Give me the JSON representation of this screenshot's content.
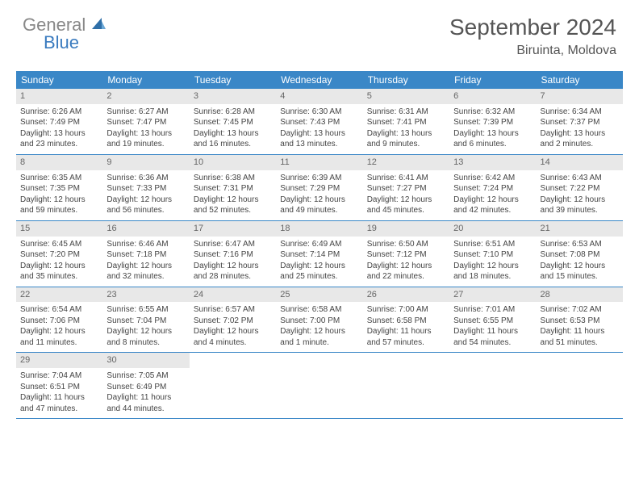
{
  "brand": {
    "part1": "General",
    "part2": "Blue"
  },
  "title": "September 2024",
  "location": "Biruinta, Moldova",
  "colors": {
    "header_bg": "#3a87c7",
    "header_text": "#ffffff",
    "daynum_bg": "#e8e8e8",
    "border": "#3a87c7",
    "logo_gray": "#888888",
    "logo_blue": "#3a7bbf"
  },
  "weekdays": [
    "Sunday",
    "Monday",
    "Tuesday",
    "Wednesday",
    "Thursday",
    "Friday",
    "Saturday"
  ],
  "weeks": [
    [
      {
        "n": "1",
        "sunrise": "6:26 AM",
        "sunset": "7:49 PM",
        "dlh": "13",
        "dlm": "23"
      },
      {
        "n": "2",
        "sunrise": "6:27 AM",
        "sunset": "7:47 PM",
        "dlh": "13",
        "dlm": "19"
      },
      {
        "n": "3",
        "sunrise": "6:28 AM",
        "sunset": "7:45 PM",
        "dlh": "13",
        "dlm": "16"
      },
      {
        "n": "4",
        "sunrise": "6:30 AM",
        "sunset": "7:43 PM",
        "dlh": "13",
        "dlm": "13"
      },
      {
        "n": "5",
        "sunrise": "6:31 AM",
        "sunset": "7:41 PM",
        "dlh": "13",
        "dlm": "9"
      },
      {
        "n": "6",
        "sunrise": "6:32 AM",
        "sunset": "7:39 PM",
        "dlh": "13",
        "dlm": "6"
      },
      {
        "n": "7",
        "sunrise": "6:34 AM",
        "sunset": "7:37 PM",
        "dlh": "13",
        "dlm": "2"
      }
    ],
    [
      {
        "n": "8",
        "sunrise": "6:35 AM",
        "sunset": "7:35 PM",
        "dlh": "12",
        "dlm": "59"
      },
      {
        "n": "9",
        "sunrise": "6:36 AM",
        "sunset": "7:33 PM",
        "dlh": "12",
        "dlm": "56"
      },
      {
        "n": "10",
        "sunrise": "6:38 AM",
        "sunset": "7:31 PM",
        "dlh": "12",
        "dlm": "52"
      },
      {
        "n": "11",
        "sunrise": "6:39 AM",
        "sunset": "7:29 PM",
        "dlh": "12",
        "dlm": "49"
      },
      {
        "n": "12",
        "sunrise": "6:41 AM",
        "sunset": "7:27 PM",
        "dlh": "12",
        "dlm": "45"
      },
      {
        "n": "13",
        "sunrise": "6:42 AM",
        "sunset": "7:24 PM",
        "dlh": "12",
        "dlm": "42"
      },
      {
        "n": "14",
        "sunrise": "6:43 AM",
        "sunset": "7:22 PM",
        "dlh": "12",
        "dlm": "39"
      }
    ],
    [
      {
        "n": "15",
        "sunrise": "6:45 AM",
        "sunset": "7:20 PM",
        "dlh": "12",
        "dlm": "35"
      },
      {
        "n": "16",
        "sunrise": "6:46 AM",
        "sunset": "7:18 PM",
        "dlh": "12",
        "dlm": "32"
      },
      {
        "n": "17",
        "sunrise": "6:47 AM",
        "sunset": "7:16 PM",
        "dlh": "12",
        "dlm": "28"
      },
      {
        "n": "18",
        "sunrise": "6:49 AM",
        "sunset": "7:14 PM",
        "dlh": "12",
        "dlm": "25"
      },
      {
        "n": "19",
        "sunrise": "6:50 AM",
        "sunset": "7:12 PM",
        "dlh": "12",
        "dlm": "22"
      },
      {
        "n": "20",
        "sunrise": "6:51 AM",
        "sunset": "7:10 PM",
        "dlh": "12",
        "dlm": "18"
      },
      {
        "n": "21",
        "sunrise": "6:53 AM",
        "sunset": "7:08 PM",
        "dlh": "12",
        "dlm": "15"
      }
    ],
    [
      {
        "n": "22",
        "sunrise": "6:54 AM",
        "sunset": "7:06 PM",
        "dlh": "12",
        "dlm": "11"
      },
      {
        "n": "23",
        "sunrise": "6:55 AM",
        "sunset": "7:04 PM",
        "dlh": "12",
        "dlm": "8"
      },
      {
        "n": "24",
        "sunrise": "6:57 AM",
        "sunset": "7:02 PM",
        "dlh": "12",
        "dlm": "4"
      },
      {
        "n": "25",
        "sunrise": "6:58 AM",
        "sunset": "7:00 PM",
        "dlh": "12",
        "dlm": "1",
        "singular": true
      },
      {
        "n": "26",
        "sunrise": "7:00 AM",
        "sunset": "6:58 PM",
        "dlh": "11",
        "dlm": "57"
      },
      {
        "n": "27",
        "sunrise": "7:01 AM",
        "sunset": "6:55 PM",
        "dlh": "11",
        "dlm": "54"
      },
      {
        "n": "28",
        "sunrise": "7:02 AM",
        "sunset": "6:53 PM",
        "dlh": "11",
        "dlm": "51"
      }
    ],
    [
      {
        "n": "29",
        "sunrise": "7:04 AM",
        "sunset": "6:51 PM",
        "dlh": "11",
        "dlm": "47"
      },
      {
        "n": "30",
        "sunrise": "7:05 AM",
        "sunset": "6:49 PM",
        "dlh": "11",
        "dlm": "44"
      },
      null,
      null,
      null,
      null,
      null
    ]
  ],
  "labels": {
    "sunrise": "Sunrise: ",
    "sunset": "Sunset: ",
    "daylight_prefix": "Daylight: ",
    "hours_infix": " hours and ",
    "minutes_suffix": " minutes.",
    "minute_suffix": " minute."
  }
}
